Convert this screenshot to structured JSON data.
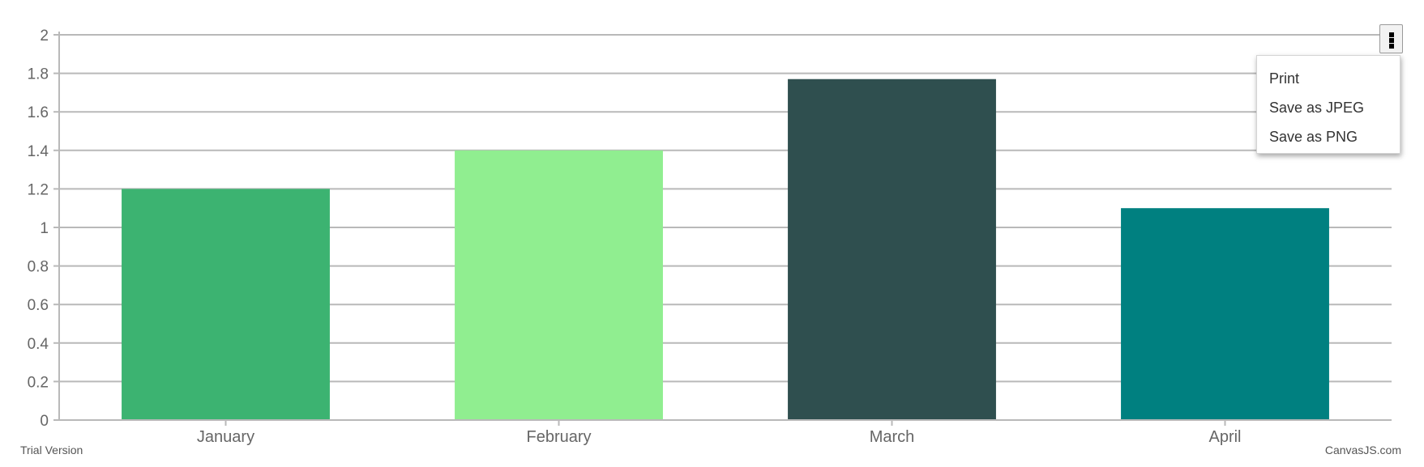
{
  "chart_data": {
    "type": "bar",
    "categories": [
      "January",
      "February",
      "March",
      "April"
    ],
    "values": [
      1.2,
      1.4,
      1.77,
      1.1
    ],
    "colors": [
      "#3CB371",
      "#90EE90",
      "#2F4F4F",
      "#008080"
    ],
    "ylim": [
      0,
      2
    ],
    "yticks": [
      "0",
      "0.2",
      "0.4",
      "0.6",
      "0.8",
      "1",
      "1.2",
      "1.4",
      "1.6",
      "1.8",
      "2"
    ],
    "grid": true,
    "legend": "none",
    "title": "",
    "xlabel": "",
    "ylabel": ""
  },
  "menu": {
    "button_icon": "vertical-ellipsis-icon",
    "items": [
      "Print",
      "Save as JPEG",
      "Save as PNG"
    ]
  },
  "footer": {
    "trial": "Trial Version",
    "credit": "CanvasJS.com"
  },
  "colors": {
    "grid": "#b9b9b9",
    "axis_text": "#666666"
  }
}
